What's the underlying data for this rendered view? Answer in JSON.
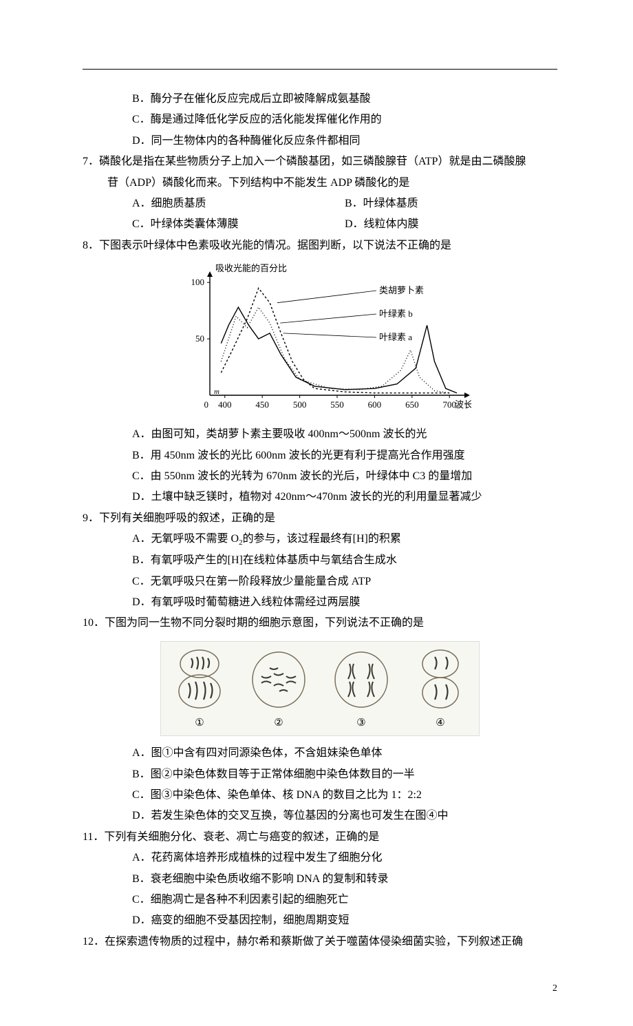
{
  "q6": {
    "B": "B．酶分子在催化反应完成后立即被降解成氨基酸",
    "C": "C．酶是通过降低化学反应的活化能发挥催化作用的",
    "D": "D．同一生物体内的各种酶催化反应条件都相同"
  },
  "q7": {
    "stem1": "7．磷酸化是指在某些物质分子上加入一个磷酸基团，如三磷酸腺苷（ATP）就是由二磷酸腺",
    "stem2": "苷（ADP）磷酸化而来。下列结构中不能发生 ADP 磷酸化的是",
    "A": "A．细胞质基质",
    "B": "B．叶绿体基质",
    "C": "C．叶绿体类囊体薄膜",
    "D": "D．线粒体内膜"
  },
  "q8": {
    "stem": "8．下图表示叶绿体中色素吸收光能的情况。据图判断，以下说法不正确的是",
    "A": "A．由图可知，类胡萝卜素主要吸收 400nm～500nm 波长的光",
    "B": "B．用 450nm 波长的光比 600nm 波长的光更有利于提高光合作用强度",
    "C": "C．由 550nm 波长的光转为 670nm 波长的光后，叶绿体中 C3 的量增加",
    "D": "D．土壤中缺乏镁时，植物对 420nm～470nm 波长的光的利用量显著减少",
    "chart": {
      "type": "line",
      "title_y": "吸收光能的百分比",
      "x_label": "波长/nm",
      "x_ticks": [
        0,
        400,
        450,
        500,
        550,
        600,
        650,
        700
      ],
      "y_ticks": [
        50,
        100
      ],
      "ylim": [
        0,
        105
      ],
      "xlim": [
        380,
        720
      ],
      "background_color": "#ffffff",
      "axis_color": "#000000",
      "series": [
        {
          "name": "类胡萝卜素",
          "color": "#000000",
          "dash": "3,3",
          "points": [
            [
              395,
              20
            ],
            [
              410,
              40
            ],
            [
              430,
              68
            ],
            [
              445,
              95
            ],
            [
              460,
              82
            ],
            [
              475,
              55
            ],
            [
              490,
              30
            ],
            [
              505,
              14
            ],
            [
              520,
              6
            ],
            [
              560,
              3
            ],
            [
              600,
              2
            ],
            [
              650,
              2
            ],
            [
              700,
              2
            ]
          ]
        },
        {
          "name": "叶绿素 b",
          "color": "#000000",
          "dash": "1,3",
          "points": [
            [
              395,
              30
            ],
            [
              405,
              50
            ],
            [
              415,
              70
            ],
            [
              430,
              60
            ],
            [
              445,
              78
            ],
            [
              460,
              64
            ],
            [
              480,
              32
            ],
            [
              500,
              14
            ],
            [
              540,
              6
            ],
            [
              580,
              5
            ],
            [
              610,
              8
            ],
            [
              635,
              22
            ],
            [
              648,
              40
            ],
            [
              660,
              16
            ],
            [
              680,
              4
            ],
            [
              700,
              2
            ]
          ]
        },
        {
          "name": "叶绿素 a",
          "color": "#000000",
          "dash": "",
          "points": [
            [
              395,
              46
            ],
            [
              405,
              62
            ],
            [
              418,
              78
            ],
            [
              432,
              62
            ],
            [
              445,
              50
            ],
            [
              460,
              55
            ],
            [
              475,
              36
            ],
            [
              495,
              16
            ],
            [
              520,
              8
            ],
            [
              560,
              5
            ],
            [
              600,
              6
            ],
            [
              630,
              10
            ],
            [
              655,
              24
            ],
            [
              670,
              62
            ],
            [
              680,
              30
            ],
            [
              695,
              6
            ],
            [
              710,
              2
            ]
          ]
        }
      ],
      "legend": {
        "items": [
          "类胡萝卜素",
          "叶绿素 b",
          "叶绿素 a"
        ],
        "font_size": 13
      },
      "font_size_axis": 13
    }
  },
  "q9": {
    "stem": "9．下列有关细胞呼吸的叙述，正确的是",
    "A_pre": "A．无氧呼吸不需要 O",
    "A_post": "的参与，该过程最终有[H]的积累",
    "B": "B．有氧呼吸产生的[H]在线粒体基质中与氧结合生成水",
    "C": "C．无氧呼吸只在第一阶段释放少量能量合成 ATP",
    "D": "D．有氧呼吸时葡萄糖进入线粒体需经过两层膜"
  },
  "q10": {
    "stem": "10．下图为同一生物不同分裂时期的细胞示意图，下列说法不正确的是",
    "cells": {
      "labels": [
        "①",
        "②",
        "③",
        "④"
      ],
      "cell_bg": "#f7f6f0",
      "cell_stroke": "#786f58",
      "font_size": 15
    },
    "A": "A．图①中含有四对同源染色体，不含姐妹染色单体",
    "B": "B．图②中染色体数目等于正常体细胞中染色体数目的一半",
    "C": "C．图③中染色体、染色单体、核 DNA 的数目之比为 1：2:2",
    "D": "D．若发生染色体的交叉互换，等位基因的分离也可发生在图④中"
  },
  "q11": {
    "stem": "11．下列有关细胞分化、衰老、凋亡与癌变的叙述，正确的是",
    "A": "A．花药离体培养形成植株的过程中发生了细胞分化",
    "B": "B．衰老细胞中染色质收缩不影响 DNA 的复制和转录",
    "C": "C．细胞凋亡是各种不利因素引起的细胞死亡",
    "D": "D．癌变的细胞不受基因控制，细胞周期变短"
  },
  "q12": {
    "stem": "12．在探索遗传物质的过程中，赫尔希和蔡斯做了关于噬菌体侵染细菌实验，下列叙述正确"
  },
  "page_number": "2"
}
